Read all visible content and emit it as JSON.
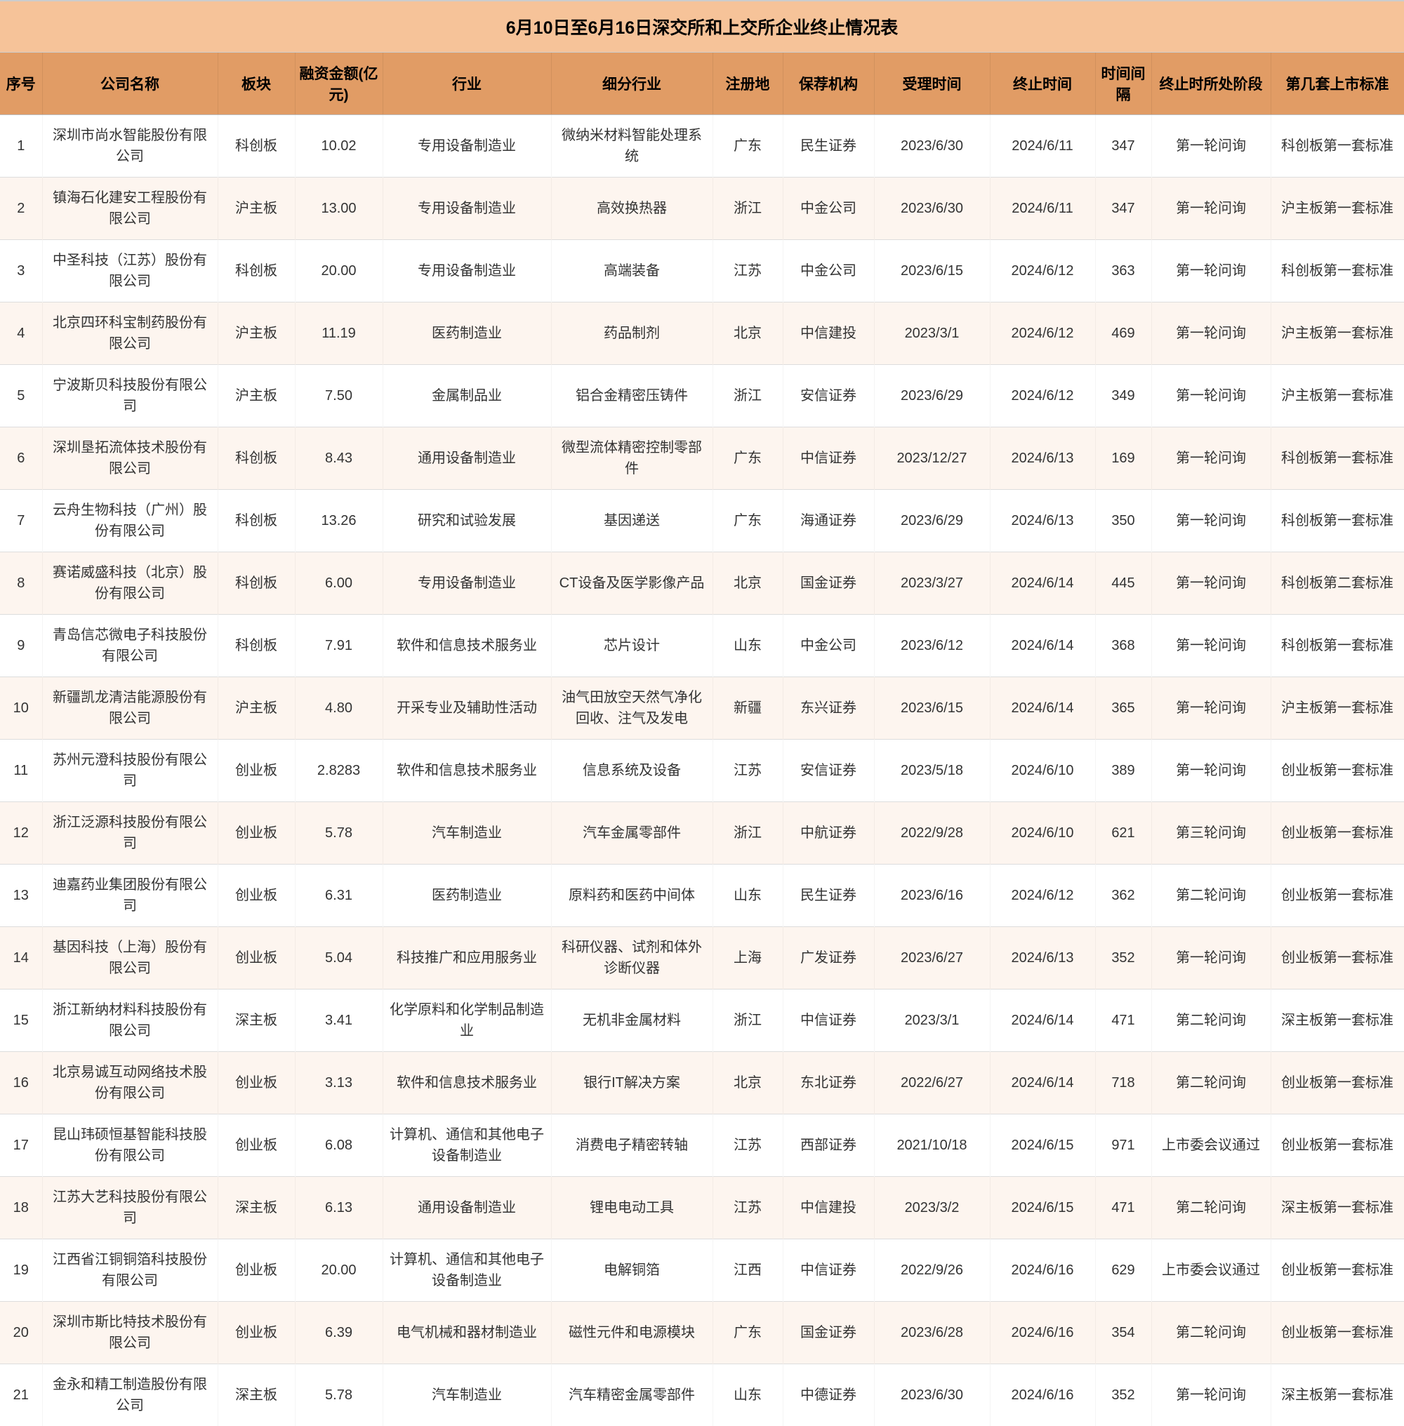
{
  "title": "6月10日至6月16日深交所和上交所企业终止情况表",
  "colors": {
    "title_bg": "#f6c399",
    "header_bg": "#e19c65",
    "header_fg": "#000000",
    "row_even_bg": "#fdf5ef",
    "row_odd_bg": "#ffffff",
    "border": "#cccccc"
  },
  "columns": [
    "序号",
    "公司名称",
    "板块",
    "融资金额(亿元)",
    "行业",
    "细分行业",
    "注册地",
    "保荐机构",
    "受理时间",
    "终止时间",
    "时间间隔",
    "终止时所处阶段",
    "第几套上市标准"
  ],
  "rows": [
    {
      "seq": "1",
      "name": "深圳市尚水智能股份有限公司",
      "board": "科创板",
      "amount": "10.02",
      "industry": "专用设备制造业",
      "sub": "微纳米材料智能处理系统",
      "reg": "广东",
      "sponsor": "民生证券",
      "accept": "2023/6/30",
      "term": "2024/6/11",
      "days": "347",
      "phase": "第一轮问询",
      "std": "科创板第一套标准"
    },
    {
      "seq": "2",
      "name": "镇海石化建安工程股份有限公司",
      "board": "沪主板",
      "amount": "13.00",
      "industry": "专用设备制造业",
      "sub": "高效换热器",
      "reg": "浙江",
      "sponsor": "中金公司",
      "accept": "2023/6/30",
      "term": "2024/6/11",
      "days": "347",
      "phase": "第一轮问询",
      "std": "沪主板第一套标准"
    },
    {
      "seq": "3",
      "name": "中圣科技（江苏）股份有限公司",
      "board": "科创板",
      "amount": "20.00",
      "industry": "专用设备制造业",
      "sub": "高端装备",
      "reg": "江苏",
      "sponsor": "中金公司",
      "accept": "2023/6/15",
      "term": "2024/6/12",
      "days": "363",
      "phase": "第一轮问询",
      "std": "科创板第一套标准"
    },
    {
      "seq": "4",
      "name": "北京四环科宝制药股份有限公司",
      "board": "沪主板",
      "amount": "11.19",
      "industry": "医药制造业",
      "sub": "药品制剂",
      "reg": "北京",
      "sponsor": "中信建投",
      "accept": "2023/3/1",
      "term": "2024/6/12",
      "days": "469",
      "phase": "第一轮问询",
      "std": "沪主板第一套标准"
    },
    {
      "seq": "5",
      "name": "宁波斯贝科技股份有限公司",
      "board": "沪主板",
      "amount": "7.50",
      "industry": "金属制品业",
      "sub": "铝合金精密压铸件",
      "reg": "浙江",
      "sponsor": "安信证券",
      "accept": "2023/6/29",
      "term": "2024/6/12",
      "days": "349",
      "phase": "第一轮问询",
      "std": "沪主板第一套标准"
    },
    {
      "seq": "6",
      "name": "深圳垦拓流体技术股份有限公司",
      "board": "科创板",
      "amount": "8.43",
      "industry": "通用设备制造业",
      "sub": "微型流体精密控制零部件",
      "reg": "广东",
      "sponsor": "中信证券",
      "accept": "2023/12/27",
      "term": "2024/6/13",
      "days": "169",
      "phase": "第一轮问询",
      "std": "科创板第一套标准"
    },
    {
      "seq": "7",
      "name": "云舟生物科技（广州）股份有限公司",
      "board": "科创板",
      "amount": "13.26",
      "industry": "研究和试验发展",
      "sub": "基因递送",
      "reg": "广东",
      "sponsor": "海通证券",
      "accept": "2023/6/29",
      "term": "2024/6/13",
      "days": "350",
      "phase": "第一轮问询",
      "std": "科创板第一套标准"
    },
    {
      "seq": "8",
      "name": "赛诺威盛科技（北京）股份有限公司",
      "board": "科创板",
      "amount": "6.00",
      "industry": "专用设备制造业",
      "sub": "CT设备及医学影像产品",
      "reg": "北京",
      "sponsor": "国金证券",
      "accept": "2023/3/27",
      "term": "2024/6/14",
      "days": "445",
      "phase": "第一轮问询",
      "std": "科创板第二套标准"
    },
    {
      "seq": "9",
      "name": "青岛信芯微电子科技股份有限公司",
      "board": "科创板",
      "amount": "7.91",
      "industry": "软件和信息技术服务业",
      "sub": "芯片设计",
      "reg": "山东",
      "sponsor": "中金公司",
      "accept": "2023/6/12",
      "term": "2024/6/14",
      "days": "368",
      "phase": "第一轮问询",
      "std": "科创板第一套标准"
    },
    {
      "seq": "10",
      "name": "新疆凯龙清洁能源股份有限公司",
      "board": "沪主板",
      "amount": "4.80",
      "industry": "开采专业及辅助性活动",
      "sub": "油气田放空天然气净化回收、注气及发电",
      "reg": "新疆",
      "sponsor": "东兴证券",
      "accept": "2023/6/15",
      "term": "2024/6/14",
      "days": "365",
      "phase": "第一轮问询",
      "std": "沪主板第一套标准"
    },
    {
      "seq": "11",
      "name": "苏州元澄科技股份有限公司",
      "board": "创业板",
      "amount": "2.8283",
      "industry": "软件和信息技术服务业",
      "sub": "信息系统及设备",
      "reg": "江苏",
      "sponsor": "安信证券",
      "accept": "2023/5/18",
      "term": "2024/6/10",
      "days": "389",
      "phase": "第一轮问询",
      "std": "创业板第一套标准"
    },
    {
      "seq": "12",
      "name": "浙江泛源科技股份有限公司",
      "board": "创业板",
      "amount": "5.78",
      "industry": "汽车制造业",
      "sub": "汽车金属零部件",
      "reg": "浙江",
      "sponsor": "中航证券",
      "accept": "2022/9/28",
      "term": "2024/6/10",
      "days": "621",
      "phase": "第三轮问询",
      "std": "创业板第一套标准"
    },
    {
      "seq": "13",
      "name": "迪嘉药业集团股份有限公司",
      "board": "创业板",
      "amount": "6.31",
      "industry": "医药制造业",
      "sub": "原料药和医药中间体",
      "reg": "山东",
      "sponsor": "民生证券",
      "accept": "2023/6/16",
      "term": "2024/6/12",
      "days": "362",
      "phase": "第二轮问询",
      "std": "创业板第一套标准"
    },
    {
      "seq": "14",
      "name": "基因科技（上海）股份有限公司",
      "board": "创业板",
      "amount": "5.04",
      "industry": "科技推广和应用服务业",
      "sub": "科研仪器、试剂和体外诊断仪器",
      "reg": "上海",
      "sponsor": "广发证券",
      "accept": "2023/6/27",
      "term": "2024/6/13",
      "days": "352",
      "phase": "第一轮问询",
      "std": "创业板第一套标准"
    },
    {
      "seq": "15",
      "name": "浙江新纳材料科技股份有限公司",
      "board": "深主板",
      "amount": "3.41",
      "industry": "化学原料和化学制品制造业",
      "sub": "无机非金属材料",
      "reg": "浙江",
      "sponsor": "中信证券",
      "accept": "2023/3/1",
      "term": "2024/6/14",
      "days": "471",
      "phase": "第二轮问询",
      "std": "深主板第一套标准"
    },
    {
      "seq": "16",
      "name": "北京易诚互动网络技术股份有限公司",
      "board": "创业板",
      "amount": "3.13",
      "industry": "软件和信息技术服务业",
      "sub": "银行IT解决方案",
      "reg": "北京",
      "sponsor": "东北证券",
      "accept": "2022/6/27",
      "term": "2024/6/14",
      "days": "718",
      "phase": "第二轮问询",
      "std": "创业板第一套标准"
    },
    {
      "seq": "17",
      "name": "昆山玮硕恒基智能科技股份有限公司",
      "board": "创业板",
      "amount": "6.08",
      "industry": "计算机、通信和其他电子设备制造业",
      "sub": "消费电子精密转轴",
      "reg": "江苏",
      "sponsor": "西部证券",
      "accept": "2021/10/18",
      "term": "2024/6/15",
      "days": "971",
      "phase": "上市委会议通过",
      "std": "创业板第一套标准"
    },
    {
      "seq": "18",
      "name": "江苏大艺科技股份有限公司",
      "board": "深主板",
      "amount": "6.13",
      "industry": "通用设备制造业",
      "sub": "锂电电动工具",
      "reg": "江苏",
      "sponsor": "中信建投",
      "accept": "2023/3/2",
      "term": "2024/6/15",
      "days": "471",
      "phase": "第二轮问询",
      "std": "深主板第一套标准"
    },
    {
      "seq": "19",
      "name": "江西省江铜铜箔科技股份有限公司",
      "board": "创业板",
      "amount": "20.00",
      "industry": "计算机、通信和其他电子设备制造业",
      "sub": "电解铜箔",
      "reg": "江西",
      "sponsor": "中信证券",
      "accept": "2022/9/26",
      "term": "2024/6/16",
      "days": "629",
      "phase": "上市委会议通过",
      "std": "创业板第一套标准"
    },
    {
      "seq": "20",
      "name": "深圳市斯比特技术股份有限公司",
      "board": "创业板",
      "amount": "6.39",
      "industry": "电气机械和器材制造业",
      "sub": "磁性元件和电源模块",
      "reg": "广东",
      "sponsor": "国金证券",
      "accept": "2023/6/28",
      "term": "2024/6/16",
      "days": "354",
      "phase": "第二轮问询",
      "std": "创业板第一套标准"
    },
    {
      "seq": "21",
      "name": "金永和精工制造股份有限公司",
      "board": "深主板",
      "amount": "5.78",
      "industry": "汽车制造业",
      "sub": "汽车精密金属零部件",
      "reg": "山东",
      "sponsor": "中德证券",
      "accept": "2023/6/30",
      "term": "2024/6/16",
      "days": "352",
      "phase": "第一轮问询",
      "std": "深主板第一套标准"
    }
  ]
}
